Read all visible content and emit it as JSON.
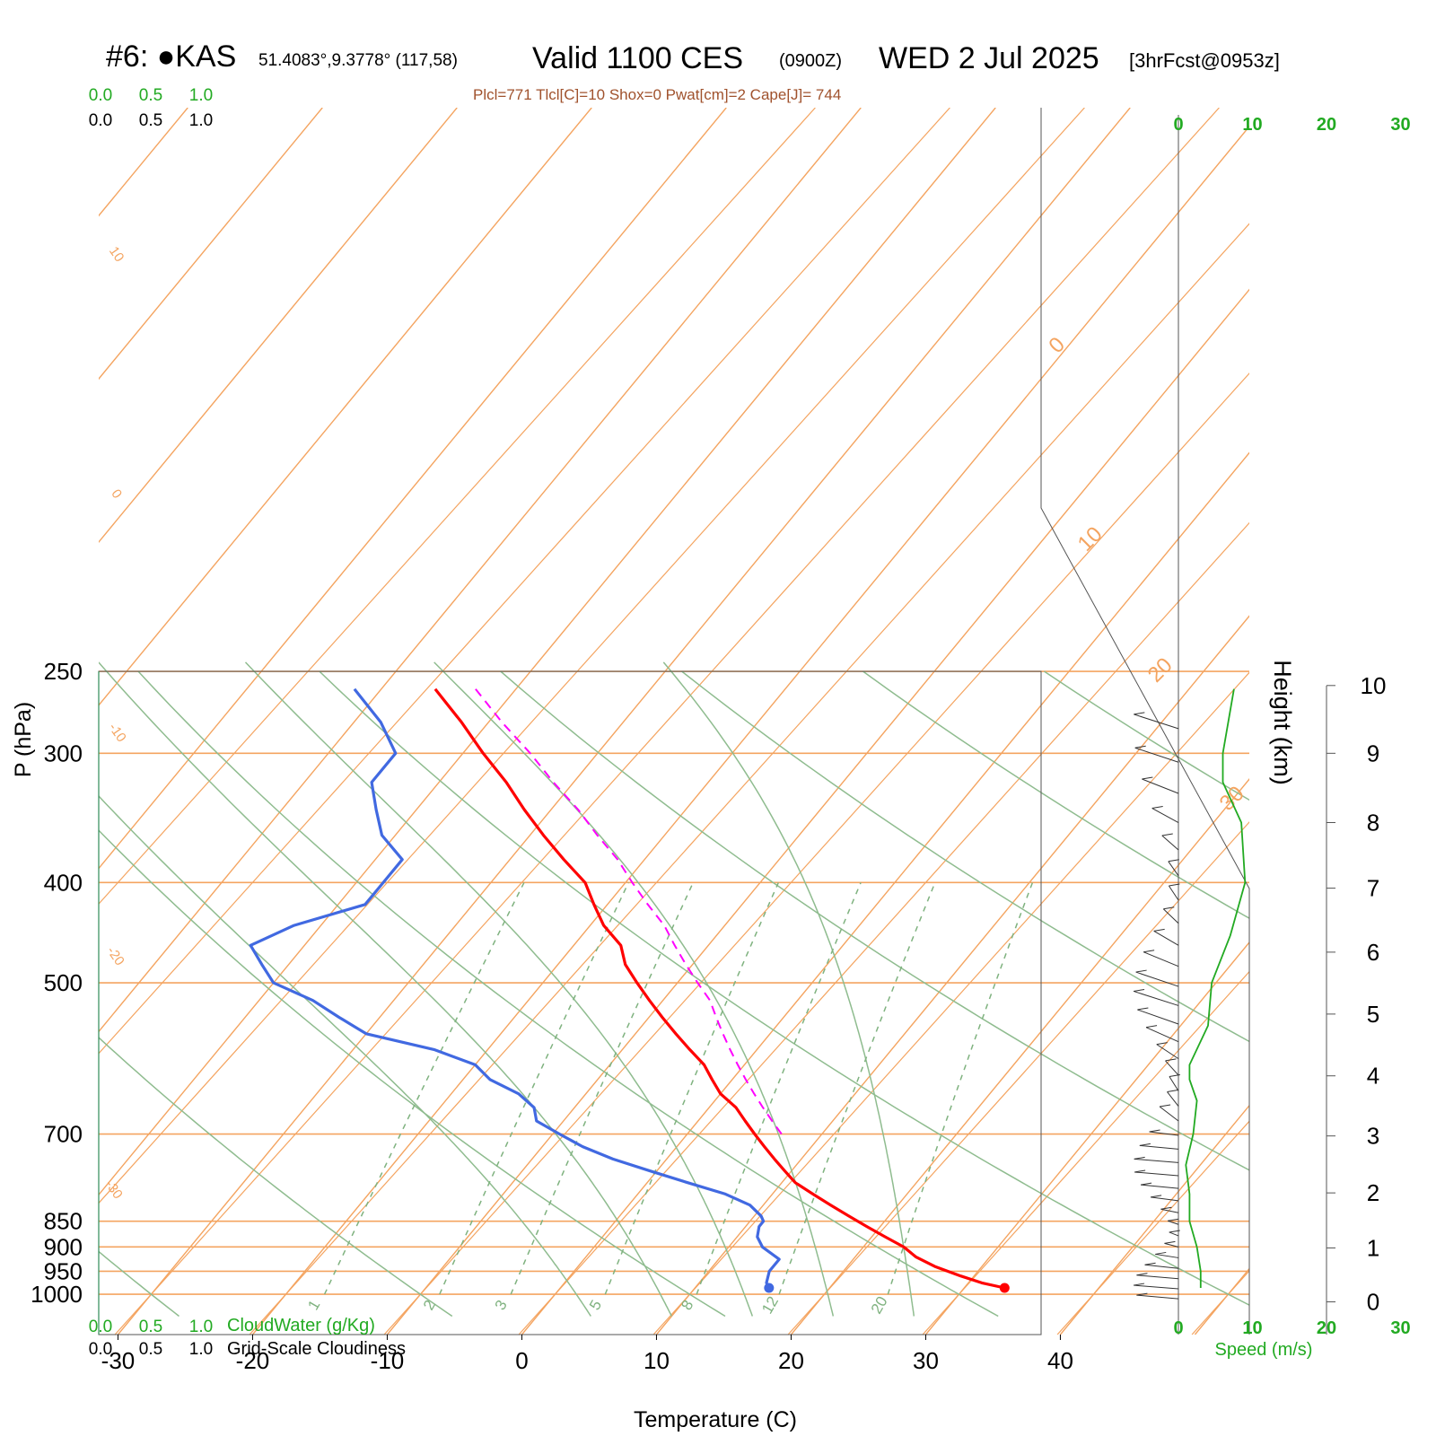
{
  "header": {
    "station": "#6: ●KAS",
    "coords": "51.4083°,9.3778° (117,58)",
    "valid": "Valid 1100 CES",
    "zulu": "(0900Z)",
    "date": "WED 2 Jul 2025",
    "forecast": "[3hrFcst@0953z]",
    "indices": "Plcl=771 Tlcl[C]=10 Shox=0 Pwat[cm]=2 Cape[J]= 744"
  },
  "colors": {
    "temperature": "#ff0000",
    "dewpoint": "#4169e1",
    "parcel": "#ff00ff",
    "isotherm": "#f4a460",
    "mixing_ratio": "#7fb27f",
    "adiabat": "#8fbc8f",
    "wind_speed": "#22aa22",
    "indices_text": "#a0522d"
  },
  "chart_data": {
    "type": "skew-t",
    "xlabel": "Temperature (C)",
    "ylabel": "P (hPa)",
    "right_label": "Height (km)",
    "x_ticks": [
      -30,
      -20,
      -10,
      0,
      10,
      20,
      30,
      40
    ],
    "p_ticks": [
      250,
      300,
      400,
      500,
      700,
      850,
      900,
      950,
      1000
    ],
    "height_ticks": [
      0,
      1,
      2,
      3,
      4,
      5,
      6,
      7,
      8,
      9,
      10
    ],
    "height_ticks_p": [
      1017,
      902,
      798,
      703,
      615,
      536,
      467,
      405,
      350,
      300,
      258
    ],
    "isotherm_labels": [
      "10",
      "0",
      "-10",
      "-20",
      "-30",
      "0",
      "10",
      "20",
      "30"
    ],
    "mixing_ratio_values": [
      1,
      2,
      3,
      5,
      8,
      12,
      20
    ],
    "temperature": {
      "p": [
        986,
        975,
        960,
        940,
        920,
        900,
        880,
        860,
        840,
        820,
        800,
        780,
        760,
        740,
        720,
        700,
        680,
        660,
        640,
        620,
        600,
        580,
        560,
        540,
        520,
        500,
        480,
        460,
        440,
        420,
        400,
        380,
        360,
        340,
        320,
        300,
        280,
        260
      ],
      "t": [
        33.0,
        31.0,
        29.0,
        26.5,
        24.5,
        23.0,
        21.0,
        19.0,
        17.0,
        15.0,
        13.0,
        11.0,
        9.5,
        8.0,
        6.5,
        5.0,
        3.5,
        2.0,
        0.0,
        -1.5,
        -3.0,
        -5.0,
        -7.0,
        -9.0,
        -11.0,
        -13.0,
        -15.0,
        -16.5,
        -19.0,
        -21.0,
        -23.0,
        -26.0,
        -29.0,
        -32.0,
        -35.0,
        -38.5,
        -42.0,
        -46.0
      ]
    },
    "dewpoint": {
      "p": [
        986,
        975,
        950,
        925,
        900,
        880,
        860,
        850,
        840,
        820,
        800,
        780,
        760,
        740,
        720,
        700,
        680,
        660,
        640,
        620,
        600,
        580,
        560,
        540,
        520,
        500,
        480,
        460,
        440,
        420,
        400,
        380,
        360,
        340,
        320,
        300,
        280,
        260
      ],
      "td": [
        15.5,
        15.0,
        14.5,
        14.5,
        12.5,
        11.5,
        11.0,
        11.0,
        10.5,
        9.0,
        6.5,
        3.0,
        -0.5,
        -4.0,
        -7.0,
        -9.5,
        -12.0,
        -13.0,
        -15.0,
        -18.0,
        -20.0,
        -24.0,
        -30.0,
        -33.0,
        -36.0,
        -40.0,
        -42.0,
        -44.0,
        -42.0,
        -38.0,
        -38.0,
        -38.0,
        -41.0,
        -43.0,
        -45.0,
        -45.0,
        -48.0,
        -52.0
      ]
    },
    "parcel": {
      "p": [
        700,
        680,
        660,
        640,
        620,
        600,
        580,
        560,
        540,
        520,
        500,
        480,
        460,
        440,
        420,
        400,
        380,
        360,
        340,
        320,
        300,
        280,
        260
      ],
      "t": [
        7.0,
        5.5,
        4.0,
        2.5,
        1.0,
        -0.5,
        -2.0,
        -3.5,
        -5.0,
        -6.5,
        -8.5,
        -10.5,
        -12.5,
        -14.5,
        -17.0,
        -19.5,
        -22.0,
        -25.0,
        -28.0,
        -31.5,
        -35.0,
        -39.0,
        -43.0
      ]
    },
    "wind_speed": {
      "xlabel": "Speed (m/s)",
      "ticks": [
        0,
        10,
        20,
        30
      ],
      "p": [
        986,
        950,
        900,
        850,
        800,
        750,
        700,
        650,
        620,
        600,
        550,
        500,
        450,
        400,
        350,
        320,
        300,
        260
      ],
      "speed": [
        3.0,
        3.0,
        2.5,
        1.5,
        1.5,
        1.0,
        2.0,
        2.5,
        1.5,
        1.5,
        4.0,
        4.5,
        7.0,
        9.0,
        8.5,
        6.0,
        6.0,
        7.5
      ]
    },
    "cloud_scales": {
      "top_green": [
        "0.0",
        "0.5",
        "1.0"
      ],
      "top_black": [
        "0.0",
        "0.5",
        "1.0"
      ],
      "bottom_green": [
        "0.0",
        "0.5",
        "1.0"
      ],
      "bottom_black": [
        "0.0",
        "0.5",
        "1.0"
      ],
      "cloudwater_label": "CloudWater (g/Kg)",
      "cloudiness_label": "Grid-Scale Cloudiness"
    }
  }
}
